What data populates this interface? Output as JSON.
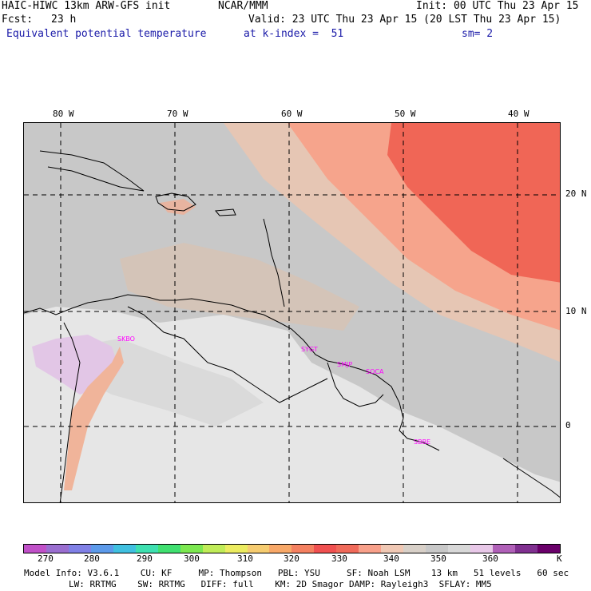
{
  "header": {
    "model_title": "HAIC-HIWC 13km ARW-GFS init",
    "agency": "NCAR/MMM",
    "init": "Init: 00 UTC Thu 23 Apr 15",
    "fcst_label": "Fcst:",
    "fcst_value": "23 h",
    "valid": "Valid: 23 UTC Thu 23 Apr 15 (20 LST Thu 23 Apr 15)",
    "field": "Equivalent potential temperature",
    "level": "at k-index =  51",
    "smoothing": "sm= 2"
  },
  "map": {
    "lon_labels": [
      "80 W",
      "70 W",
      "60 W",
      "50 W",
      "40 W"
    ],
    "lat_labels": [
      "20 N",
      "10 N",
      "0"
    ],
    "stations": [
      "SKBO",
      "SYGT",
      "SMJP",
      "SOCA",
      "SBBE"
    ]
  },
  "colorbar": {
    "colors": [
      "#c050c8",
      "#9a6ed0",
      "#8080e6",
      "#5c9aea",
      "#40c0e0",
      "#3ee0b0",
      "#40e070",
      "#7ce850",
      "#c0ec58",
      "#ecec60",
      "#f6cc70",
      "#f8a868",
      "#f48060",
      "#f05050",
      "#f06a5a",
      "#f8a08a",
      "#f0c8b4",
      "#d8d0c8",
      "#c8c8c8",
      "#d8d8d8",
      "#e8c8e8",
      "#b060b8",
      "#803090",
      "#6a006a"
    ],
    "labels": [
      "270",
      "280",
      "290",
      "300",
      "310",
      "320",
      "330",
      "340",
      "350",
      "360",
      "K"
    ]
  },
  "footer": {
    "line1": "Model Info: V3.6.1    CU: KF     MP: Thompson   PBL: YSU     SF: Noah LSM    13 km   51 levels   60 sec",
    "line2": "LW: RRTMG    SW: RRTMG   DIFF: full    KM: 2D Smagor DAMP: Rayleigh3  SFLAY: MM5"
  }
}
